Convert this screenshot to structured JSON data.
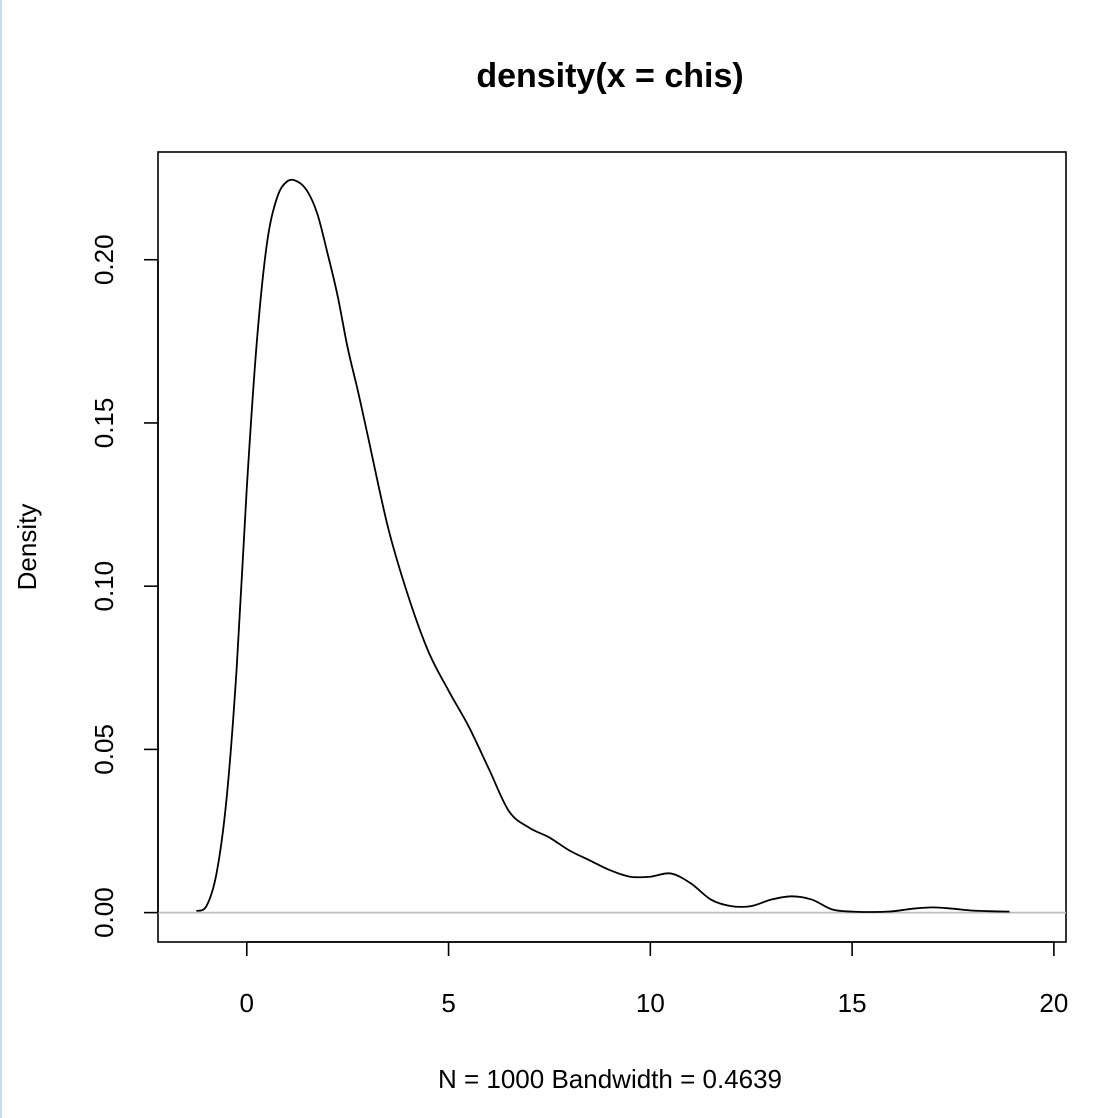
{
  "chart_data": {
    "type": "line",
    "title": "density(x = chis)",
    "xlabel": "N = 1000   Bandwidth = 0.4639",
    "ylabel": "Density",
    "xlim": [
      -2.2,
      20.3
    ],
    "ylim": [
      -0.009,
      0.233
    ],
    "x_ticks": [
      0,
      5,
      10,
      15,
      20
    ],
    "x_tick_labels": [
      "0",
      "5",
      "10",
      "15",
      "20"
    ],
    "y_ticks": [
      0.0,
      0.05,
      0.1,
      0.15,
      0.2
    ],
    "y_tick_labels": [
      "0.00",
      "0.05",
      "0.10",
      "0.15",
      "0.20"
    ],
    "grid": false,
    "baseline": 0,
    "series": [
      {
        "color": "#000000",
        "x": [
          -1.25,
          -1.0,
          -0.75,
          -0.5,
          -0.25,
          0.0,
          0.25,
          0.5,
          0.75,
          1.0,
          1.25,
          1.5,
          1.75,
          2.0,
          2.25,
          2.5,
          2.75,
          3.0,
          3.5,
          4.0,
          4.5,
          5.0,
          5.5,
          6.0,
          6.5,
          7.0,
          7.5,
          8.0,
          8.5,
          9.0,
          9.5,
          10.0,
          10.5,
          11.0,
          11.5,
          12.0,
          12.5,
          13.0,
          13.5,
          14.0,
          14.5,
          15.0,
          15.5,
          16.0,
          16.5,
          17.0,
          17.5,
          18.0,
          18.5,
          18.9
        ],
        "y": [
          0.0005,
          0.002,
          0.012,
          0.035,
          0.075,
          0.13,
          0.175,
          0.205,
          0.219,
          0.224,
          0.224,
          0.221,
          0.214,
          0.202,
          0.189,
          0.173,
          0.16,
          0.146,
          0.118,
          0.097,
          0.08,
          0.068,
          0.057,
          0.044,
          0.031,
          0.026,
          0.023,
          0.019,
          0.016,
          0.013,
          0.011,
          0.011,
          0.012,
          0.009,
          0.004,
          0.002,
          0.002,
          0.004,
          0.005,
          0.004,
          0.001,
          0.0003,
          0.0002,
          0.0004,
          0.0012,
          0.0016,
          0.0012,
          0.0006,
          0.0004,
          0.0003
        ]
      }
    ]
  }
}
